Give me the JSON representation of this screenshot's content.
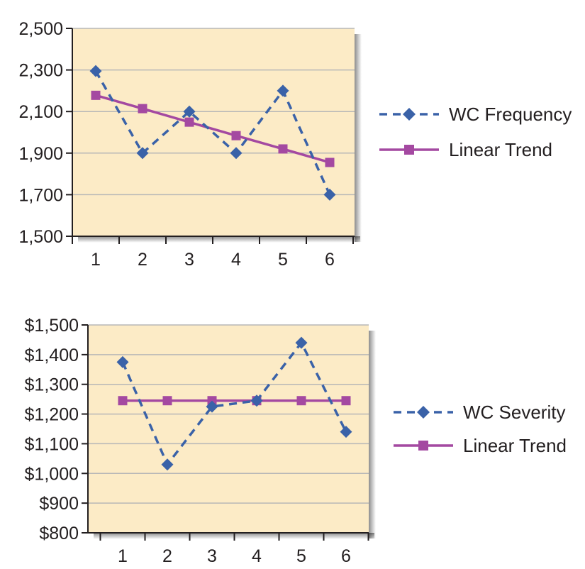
{
  "colors": {
    "plot_bg": "#fcebc6",
    "grid": "#b7b7b7",
    "axis": "#231f20",
    "diamond_series": "#3a62a8",
    "trend_series": "#a449a1"
  },
  "chart_data": [
    {
      "type": "line",
      "x": [
        1,
        2,
        3,
        4,
        5,
        6
      ],
      "ylim": [
        1500,
        2500
      ],
      "yticks": [
        1500,
        1700,
        1900,
        2100,
        2300,
        2500
      ],
      "ytick_labels": [
        "1,500",
        "1,700",
        "1,900",
        "2,100",
        "2,300",
        "2,500"
      ],
      "xtick_labels": [
        "1",
        "2",
        "3",
        "4",
        "5",
        "6"
      ],
      "grid": true,
      "legend_position": "right",
      "series": [
        {
          "name": "WC Frequency",
          "style": "dashed-diamond",
          "values": [
            2295,
            1900,
            2100,
            1900,
            2200,
            1700
          ]
        },
        {
          "name": "Linear Trend",
          "style": "solid-square",
          "values": [
            2178,
            2114,
            2049,
            1984,
            1920,
            1855
          ]
        }
      ]
    },
    {
      "type": "line",
      "x": [
        1,
        2,
        3,
        4,
        5,
        6
      ],
      "ylim": [
        800,
        1500
      ],
      "yticks": [
        800,
        900,
        1000,
        1100,
        1200,
        1300,
        1400,
        1500
      ],
      "ytick_labels": [
        "$800",
        "$900",
        "$1,000",
        "$1,100",
        "$1,200",
        "$1,300",
        "$1,400",
        "$1,500"
      ],
      "xtick_labels": [
        "1",
        "2",
        "3",
        "4",
        "5",
        "6"
      ],
      "grid": true,
      "legend_position": "right",
      "series": [
        {
          "name": "WC Severity",
          "style": "dashed-diamond",
          "values": [
            1375,
            1030,
            1225,
            1245,
            1440,
            1140
          ]
        },
        {
          "name": "Linear Trend",
          "style": "solid-square",
          "values": [
            1245,
            1245,
            1245,
            1245,
            1245,
            1245
          ]
        }
      ]
    }
  ]
}
